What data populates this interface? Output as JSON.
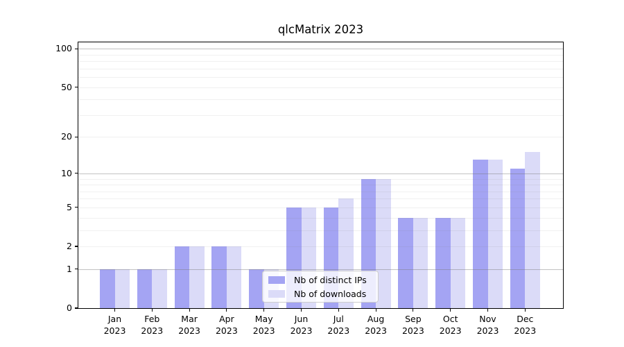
{
  "chart_data": {
    "type": "bar",
    "title": "qlcMatrix 2023",
    "categories": [
      "Jan 2023",
      "Feb 2023",
      "Mar 2023",
      "Apr 2023",
      "May 2023",
      "Jun 2023",
      "Jul 2023",
      "Aug 2023",
      "Sep 2023",
      "Oct 2023",
      "Nov 2023",
      "Dec 2023"
    ],
    "series": [
      {
        "name": "Nb of distinct IPs",
        "color": "#a4a4f3",
        "values": [
          1,
          1,
          2,
          2,
          1,
          5,
          5,
          9,
          4,
          4,
          13,
          11
        ]
      },
      {
        "name": "Nb of downloads",
        "color": "#dbdbf8",
        "values": [
          1,
          1,
          2,
          2,
          1,
          5,
          6,
          9,
          4,
          4,
          13,
          15
        ]
      }
    ],
    "xlabel": "",
    "ylabel": "",
    "y_scale": "log1p",
    "y_ticks": [
      0,
      1,
      2,
      5,
      10,
      20,
      50,
      100
    ],
    "grid": {
      "major": [
        1,
        10,
        100
      ],
      "minor": [
        2,
        3,
        4,
        5,
        6,
        7,
        8,
        9,
        20,
        30,
        40,
        50,
        60,
        70,
        80,
        90
      ]
    },
    "ylim": [
      0,
      112
    ],
    "legend_position": "lower center"
  },
  "legend": {
    "items": [
      {
        "label": "Nb of distinct IPs",
        "swatch": "#a4a4f3"
      },
      {
        "label": "Nb of downloads",
        "swatch": "#dbdbf8"
      }
    ]
  },
  "colors": {
    "background": "#ffffff",
    "axis": "#000000",
    "text": "#000000",
    "grid_major": "rgba(120,120,120,0.45)",
    "grid_minor": "rgba(120,120,120,0.11)",
    "legend_border": "#cccccc",
    "legend_bg": "rgba(255,255,255,0.8)"
  }
}
